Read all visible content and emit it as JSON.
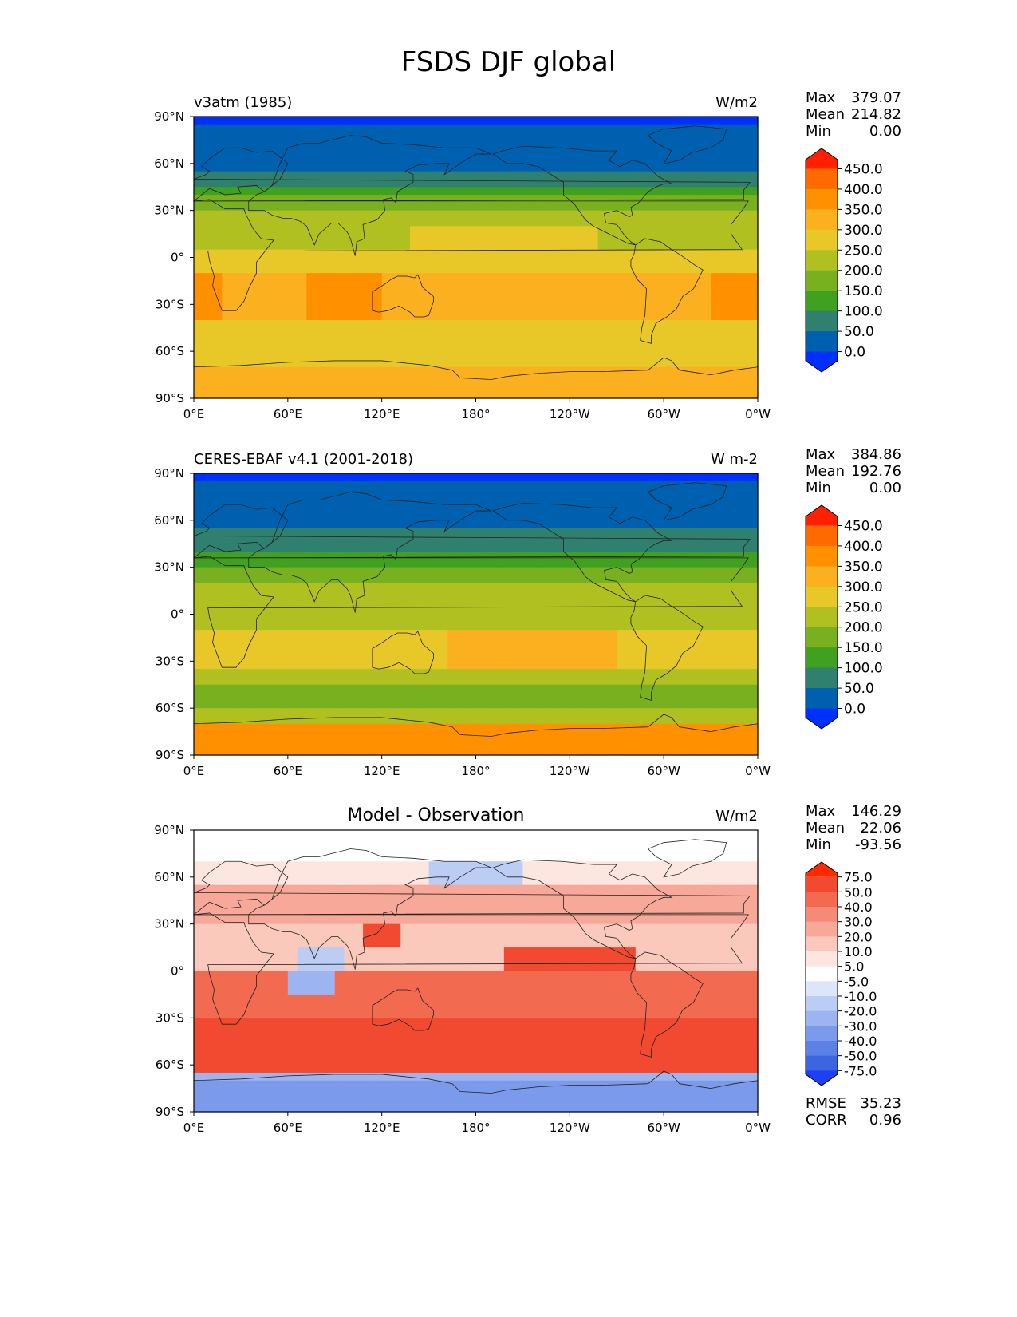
{
  "title": "FSDS DJF global",
  "chart_data": [
    {
      "type": "heatmap",
      "panel": "model",
      "title_left": "v3atm (1985)",
      "units": "W/m2",
      "stats": [
        {
          "label": "Max",
          "value": "379.07"
        },
        {
          "label": "Mean",
          "value": "214.82"
        },
        {
          "label": "Min",
          "value": "0.00"
        }
      ],
      "xticks": [
        "0°E",
        "60°E",
        "120°E",
        "180°",
        "120°W",
        "60°W",
        "0°W"
      ],
      "yticks": [
        "90°N",
        "60°N",
        "30°N",
        "0°",
        "30°S",
        "60°S",
        "90°S"
      ],
      "colorbar": {
        "levels": [
          "450.0",
          "400.0",
          "350.0",
          "300.0",
          "250.0",
          "200.0",
          "150.0",
          "100.0",
          "50.0",
          "0.0"
        ],
        "colors": [
          "#ff2000",
          "#ff6a00",
          "#ff9000",
          "#fbb020",
          "#e8c828",
          "#b0c020",
          "#78b020",
          "#40a020",
          "#308070",
          "#0060b0",
          "#0030ff"
        ],
        "extend": "both"
      }
    },
    {
      "type": "heatmap",
      "panel": "observation",
      "title_left": "CERES-EBAF v4.1 (2001-2018)",
      "units": "W m-2",
      "stats": [
        {
          "label": "Max",
          "value": "384.86"
        },
        {
          "label": "Mean",
          "value": "192.76"
        },
        {
          "label": "Min",
          "value": "0.00"
        }
      ],
      "xticks": [
        "0°E",
        "60°E",
        "120°E",
        "180°",
        "120°W",
        "60°W",
        "0°W"
      ],
      "yticks": [
        "90°N",
        "60°N",
        "30°N",
        "0°",
        "30°S",
        "60°S",
        "90°S"
      ],
      "colorbar": {
        "levels": [
          "450.0",
          "400.0",
          "350.0",
          "300.0",
          "250.0",
          "200.0",
          "150.0",
          "100.0",
          "50.0",
          "0.0"
        ],
        "colors": [
          "#ff2000",
          "#ff6a00",
          "#ff9000",
          "#fbb020",
          "#e8c828",
          "#b0c020",
          "#78b020",
          "#40a020",
          "#308070",
          "#0060b0",
          "#0030ff"
        ],
        "extend": "both"
      }
    },
    {
      "type": "heatmap",
      "panel": "difference",
      "title_center": "Model - Observation",
      "units": "W/m2",
      "stats": [
        {
          "label": "Max",
          "value": "146.29"
        },
        {
          "label": "Mean",
          "value": "22.06"
        },
        {
          "label": "Min",
          "value": "-93.56"
        }
      ],
      "metrics": [
        {
          "label": "RMSE",
          "value": "35.23"
        },
        {
          "label": "CORR",
          "value": "0.96"
        }
      ],
      "xticks": [
        "0°E",
        "60°E",
        "120°E",
        "180°",
        "120°W",
        "60°W",
        "0°W"
      ],
      "yticks": [
        "90°N",
        "60°N",
        "30°N",
        "0°",
        "30°S",
        "60°S",
        "90°S"
      ],
      "colorbar": {
        "levels": [
          "75.0",
          "50.0",
          "40.0",
          "30.0",
          "20.0",
          "10.0",
          "5.0",
          "-5.0",
          "-10.0",
          "-20.0",
          "-30.0",
          "-40.0",
          "-50.0",
          "-75.0"
        ],
        "colors": [
          "#ff2a00",
          "#f24a30",
          "#f26a50",
          "#f58a78",
          "#f8a898",
          "#fbc8bc",
          "#fde6e0",
          "#ffffff",
          "#dce6fa",
          "#bccdf5",
          "#9cb4f0",
          "#7c9aeb",
          "#5c80e6",
          "#3c66e0",
          "#1f3ff5"
        ],
        "extend": "both"
      }
    }
  ]
}
